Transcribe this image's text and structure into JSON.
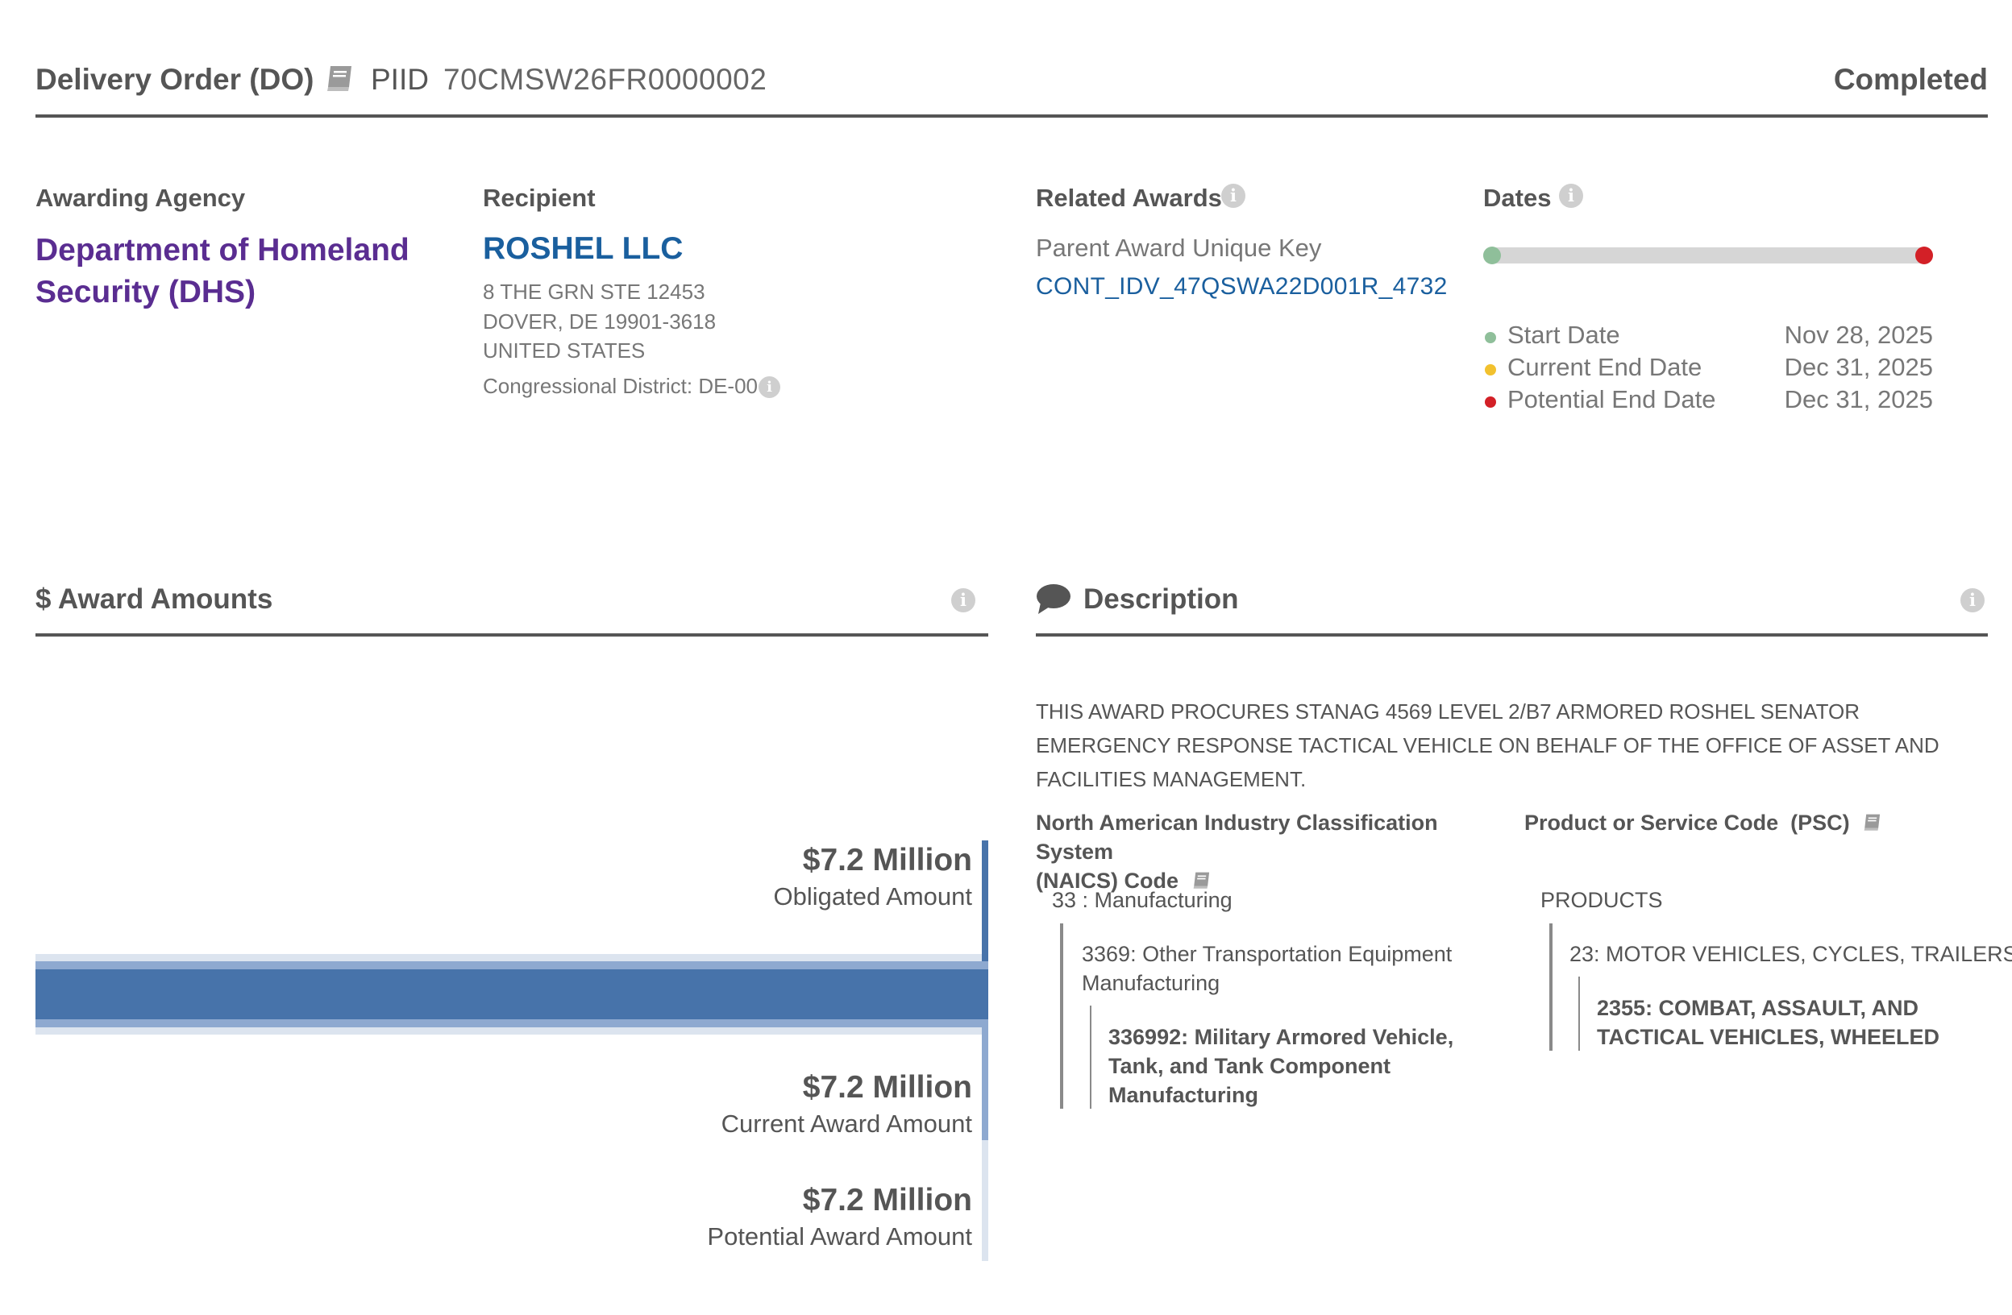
{
  "header": {
    "award_type": "Delivery Order (DO)",
    "piid_label": "PIID",
    "piid": "70CMSW26FR0000002",
    "status": "Completed"
  },
  "awarding_agency": {
    "label": "Awarding Agency",
    "name": "Department of Homeland Security (DHS)"
  },
  "recipient": {
    "label": "Recipient",
    "name": "ROSHEL LLC",
    "address_line1": "8 THE GRN STE 12453",
    "address_line2": "DOVER, DE 19901-3618",
    "country": "UNITED STATES",
    "congressional_district": "Congressional District: DE-00"
  },
  "related_awards": {
    "label": "Related Awards",
    "parent_key_label": "Parent Award Unique Key",
    "parent_key": "CONT_IDV_47QSWA22D001R_4732"
  },
  "dates": {
    "label": "Dates",
    "items": [
      {
        "label": "Start Date",
        "value": "Nov 28, 2025",
        "color": "#8fbf9a"
      },
      {
        "label": "Current End Date",
        "value": "Dec 31, 2025",
        "color": "#f2c12e"
      },
      {
        "label": "Potential End Date",
        "value": "Dec 31, 2025",
        "color": "#d32027"
      }
    ]
  },
  "award_amounts": {
    "title": "$ Award Amounts",
    "obligated": {
      "value": "$7.2 Million",
      "label": "Obligated Amount"
    },
    "current": {
      "value": "$7.2 Million",
      "label": "Current Award Amount"
    },
    "potential": {
      "value": "$7.2 Million",
      "label": "Potential Award Amount"
    },
    "colors": {
      "obligated": "#4773aa",
      "current": "#8ea9d0",
      "potential": "#dce4ef"
    }
  },
  "description": {
    "title": "Description",
    "text": "THIS AWARD PROCURES STANAG 4569 LEVEL 2/B7 ARMORED ROSHEL SENATOR EMERGENCY RESPONSE TACTICAL VEHICLE ON BEHALF OF THE OFFICE OF ASSET AND FACILITIES MANAGEMENT."
  },
  "naics": {
    "heading_line1": "North American Industry Classification System",
    "heading_line2": "(NAICS) Code",
    "level1": "33 : Manufacturing",
    "level2_line1": "3369: Other Transportation Equipment",
    "level2_line2": "Manufacturing",
    "level3_line1": "336992: Military Armored Vehicle,",
    "level3_line2": "Tank, and Tank Component",
    "level3_line3": "Manufacturing"
  },
  "psc": {
    "heading": "Product or Service Code  (PSC)",
    "level1": "PRODUCTS",
    "level2": "23: MOTOR VEHICLES, CYCLES, TRAILERS",
    "level3_line1": "2355: COMBAT, ASSAULT, AND",
    "level3_line2": "TACTICAL VEHICLES, WHEELED"
  }
}
